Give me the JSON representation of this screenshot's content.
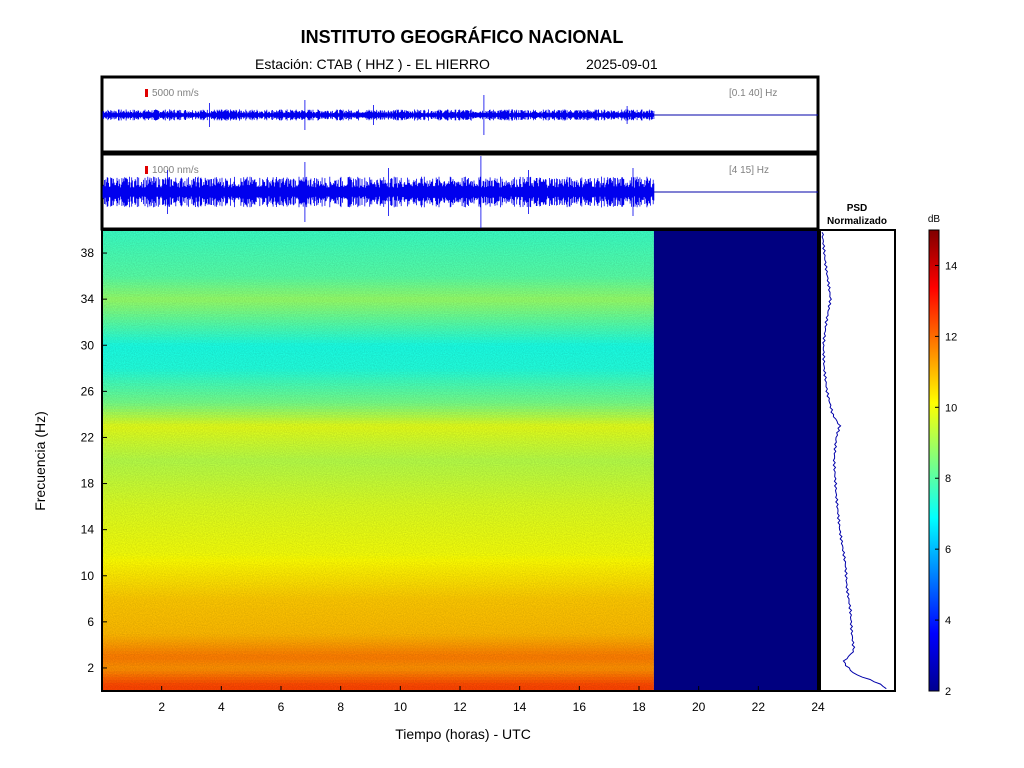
{
  "header": {
    "title": "INSTITUTO GEOGRÁFICO NACIONAL",
    "station_line": "Estación:  CTAB ( HHZ ) - EL HIERRO",
    "date": "2025-09-01"
  },
  "trace_top": {
    "scale": "5000 nm/s",
    "band": "[0.1 40] Hz",
    "data_end_hours": 18.5
  },
  "trace_bottom": {
    "scale": "1000 nm/s",
    "band": "[4 15] Hz",
    "data_end_hours": 18.5
  },
  "psd_panel": {
    "title_line1": "PSD",
    "title_line2": "Normalizado"
  },
  "colorbar": {
    "unit": "dB",
    "ticks": [
      2,
      4,
      6,
      8,
      10,
      12,
      14
    ],
    "range": [
      2,
      15
    ]
  },
  "chart_data": {
    "type": "heatmap",
    "xlabel": "Tiempo (horas) - UTC",
    "ylabel": "Frecuencia  (Hz)",
    "xlim": [
      0,
      24
    ],
    "ylim": [
      0,
      40
    ],
    "xticks": [
      2,
      4,
      6,
      8,
      10,
      12,
      14,
      16,
      18,
      20,
      22,
      24
    ],
    "yticks": [
      2,
      6,
      10,
      14,
      18,
      22,
      26,
      30,
      34,
      38
    ],
    "data_end_hours": 18.5,
    "empty_value_db": 2,
    "freq_profile_db": [
      {
        "f": 0.5,
        "db": 12.5
      },
      {
        "f": 2,
        "db": 11.5
      },
      {
        "f": 3,
        "db": 11.8
      },
      {
        "f": 5,
        "db": 11
      },
      {
        "f": 8,
        "db": 10.8
      },
      {
        "f": 12,
        "db": 10
      },
      {
        "f": 16,
        "db": 9.7
      },
      {
        "f": 20,
        "db": 9.2
      },
      {
        "f": 23,
        "db": 9.8
      },
      {
        "f": 25,
        "db": 8.4
      },
      {
        "f": 28,
        "db": 7.3
      },
      {
        "f": 30,
        "db": 7.2
      },
      {
        "f": 32,
        "db": 8.0
      },
      {
        "f": 34,
        "db": 8.8
      },
      {
        "f": 36,
        "db": 8.0
      },
      {
        "f": 40,
        "db": 7.6
      }
    ],
    "psd_curve": [
      {
        "f": 0.3,
        "v": 0.9
      },
      {
        "f": 0.8,
        "v": 0.75
      },
      {
        "f": 1.5,
        "v": 0.45
      },
      {
        "f": 2.5,
        "v": 0.3
      },
      {
        "f": 3.5,
        "v": 0.45
      },
      {
        "f": 5,
        "v": 0.42
      },
      {
        "f": 7,
        "v": 0.4
      },
      {
        "f": 9,
        "v": 0.35
      },
      {
        "f": 11,
        "v": 0.33
      },
      {
        "f": 14,
        "v": 0.25
      },
      {
        "f": 17,
        "v": 0.2
      },
      {
        "f": 20,
        "v": 0.17
      },
      {
        "f": 22,
        "v": 0.2
      },
      {
        "f": 23,
        "v": 0.25
      },
      {
        "f": 24,
        "v": 0.15
      },
      {
        "f": 26,
        "v": 0.07
      },
      {
        "f": 28,
        "v": 0.03
      },
      {
        "f": 30,
        "v": 0.02
      },
      {
        "f": 32,
        "v": 0.06
      },
      {
        "f": 34,
        "v": 0.12
      },
      {
        "f": 35,
        "v": 0.1
      },
      {
        "f": 37,
        "v": 0.05
      },
      {
        "f": 40,
        "v": 0.0
      }
    ]
  }
}
